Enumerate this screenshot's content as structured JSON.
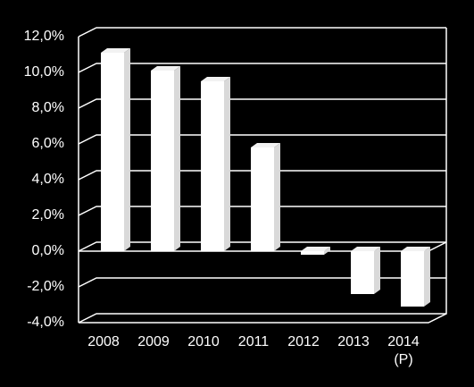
{
  "chart_data": {
    "type": "bar3d",
    "categories": [
      "2008",
      "2009",
      "2010",
      "2011",
      "2012",
      "2013",
      "2014 (P)"
    ],
    "values": [
      11.1,
      10.1,
      9.5,
      5.8,
      -0.2,
      -2.4,
      -3.1
    ],
    "color": "#ffffff",
    "ylim": [
      -4,
      12
    ],
    "yticks": [
      {
        "value": -4,
        "label": "-4,0%"
      },
      {
        "value": -2,
        "label": "-2,0%"
      },
      {
        "value": 0,
        "label": "0,0%"
      },
      {
        "value": 2,
        "label": "2,0%"
      },
      {
        "value": 4,
        "label": "4,0%"
      },
      {
        "value": 6,
        "label": "6,0%"
      },
      {
        "value": 8,
        "label": "8,0%"
      },
      {
        "value": 10,
        "label": "10,0%"
      },
      {
        "value": 12,
        "label": "12,0%"
      }
    ],
    "grid": true
  }
}
